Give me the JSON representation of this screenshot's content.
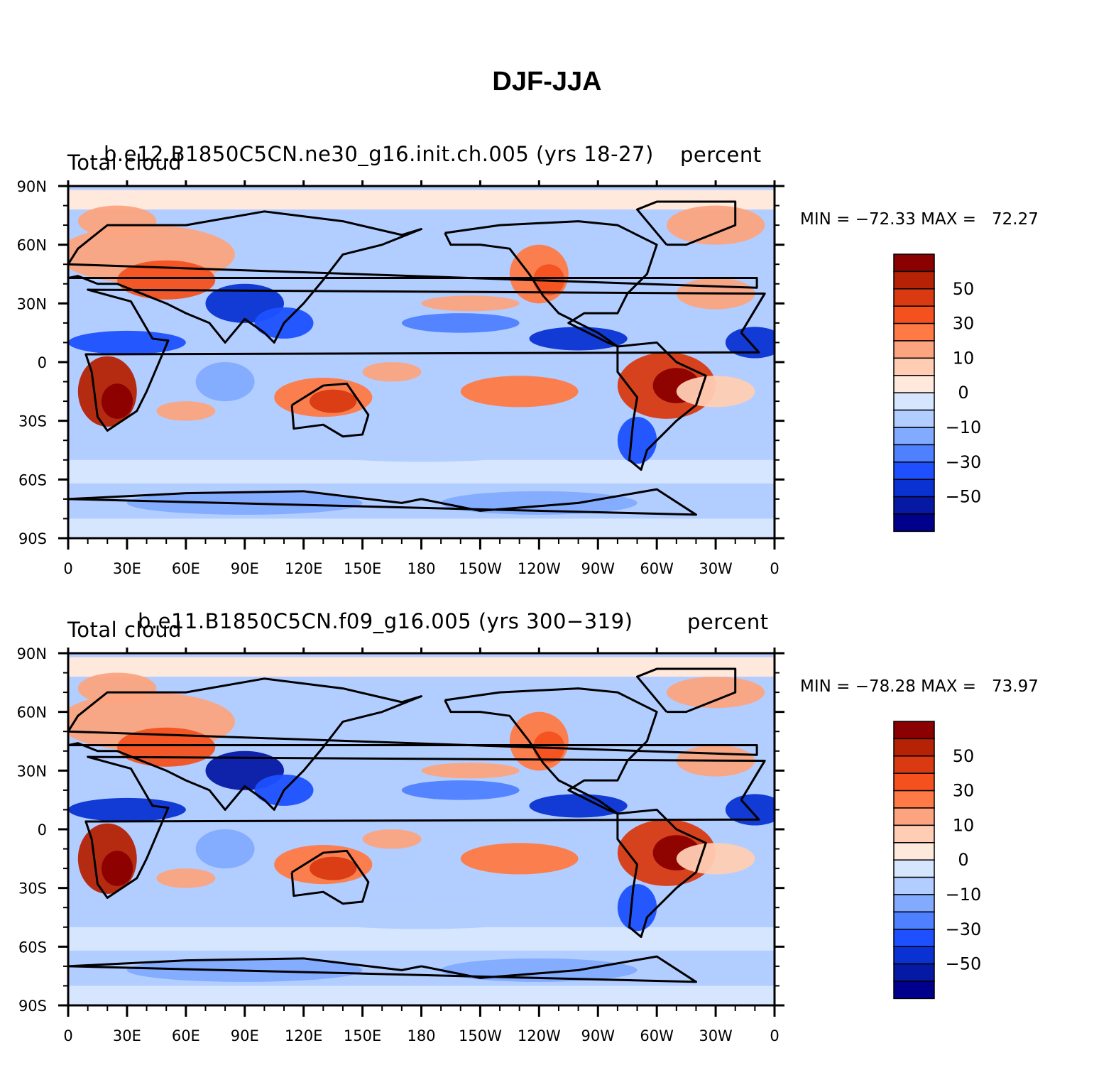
{
  "title": "DJF-JJA",
  "panels": [
    {
      "left_label": "Total cloud",
      "center_label": "b.e12.B1850C5CN.ne30_g16.init.ch.005 (yrs 18-27)",
      "right_label": "percent",
      "stats": "MIN = −72.33 MAX =   72.27"
    },
    {
      "left_label": "Total cloud",
      "center_label": "b.e11.B1850C5CN.f09_g16.005 (yrs 300−319)",
      "right_label": "percent",
      "stats": "MIN = −78.28 MAX =   73.97"
    }
  ],
  "lat_ticks": [
    "90N",
    "60N",
    "30N",
    "0",
    "30S",
    "60S",
    "90S"
  ],
  "lon_ticks": [
    "0",
    "30E",
    "60E",
    "90E",
    "120E",
    "150E",
    "180",
    "150W",
    "120W",
    "90W",
    "60W",
    "30W",
    "0"
  ],
  "colorbar": {
    "labels": [
      "50",
      "30",
      "10",
      "0",
      "−10",
      "−30",
      "−50"
    ],
    "colors": [
      "#8b0000",
      "#b52205",
      "#d93a12",
      "#f4511e",
      "#ff7a45",
      "#fca480",
      "#ffcdb4",
      "#ffe8dc",
      "#d6e6ff",
      "#b2cdff",
      "#82aaff",
      "#4f80ff",
      "#1e50ff",
      "#0a32d2",
      "#0519a5",
      "#00008c"
    ]
  },
  "colors": {
    "warm": "#f4511e",
    "cool": "#1e50ff",
    "land_outline": "#000000"
  }
}
